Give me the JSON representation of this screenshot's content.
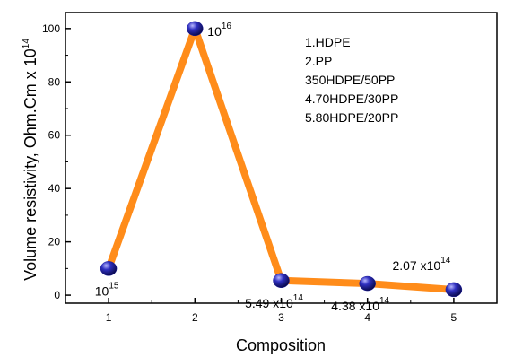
{
  "chart_data": {
    "type": "line",
    "title": "",
    "xlabel": "Composition",
    "ylabel_main": "Volume resistivity, Ohm.Cm x 10",
    "ylabel_exp": "14",
    "x": [
      1,
      2,
      3,
      4,
      5
    ],
    "y": [
      10,
      100,
      5.49,
      4.38,
      2.07
    ],
    "x_ticks": [
      "1",
      "2",
      "3",
      "4",
      "5"
    ],
    "y_ticks": [
      "0",
      "20",
      "40",
      "60",
      "80",
      "100"
    ],
    "xlim": [
      0.5,
      5.5
    ],
    "ylim": [
      -3,
      106
    ],
    "grid": false,
    "legend_placement": "top-right",
    "legend": [
      "1.HDPE",
      "2.PP",
      "350HDPE/50PP",
      "4.70HDPE/30PP",
      "5.80HDPE/20PP"
    ],
    "point_labels": [
      {
        "base": "10",
        "exp": "15"
      },
      {
        "base": "10",
        "exp": "16"
      },
      {
        "base": "5.49 x10",
        "exp": "14"
      },
      {
        "base": "4.38 x10",
        "exp": "14"
      },
      {
        "base": "2.07 x10",
        "exp": "14"
      }
    ],
    "line_color": "#ff8c1a",
    "marker_color": "#1c1c9e"
  }
}
